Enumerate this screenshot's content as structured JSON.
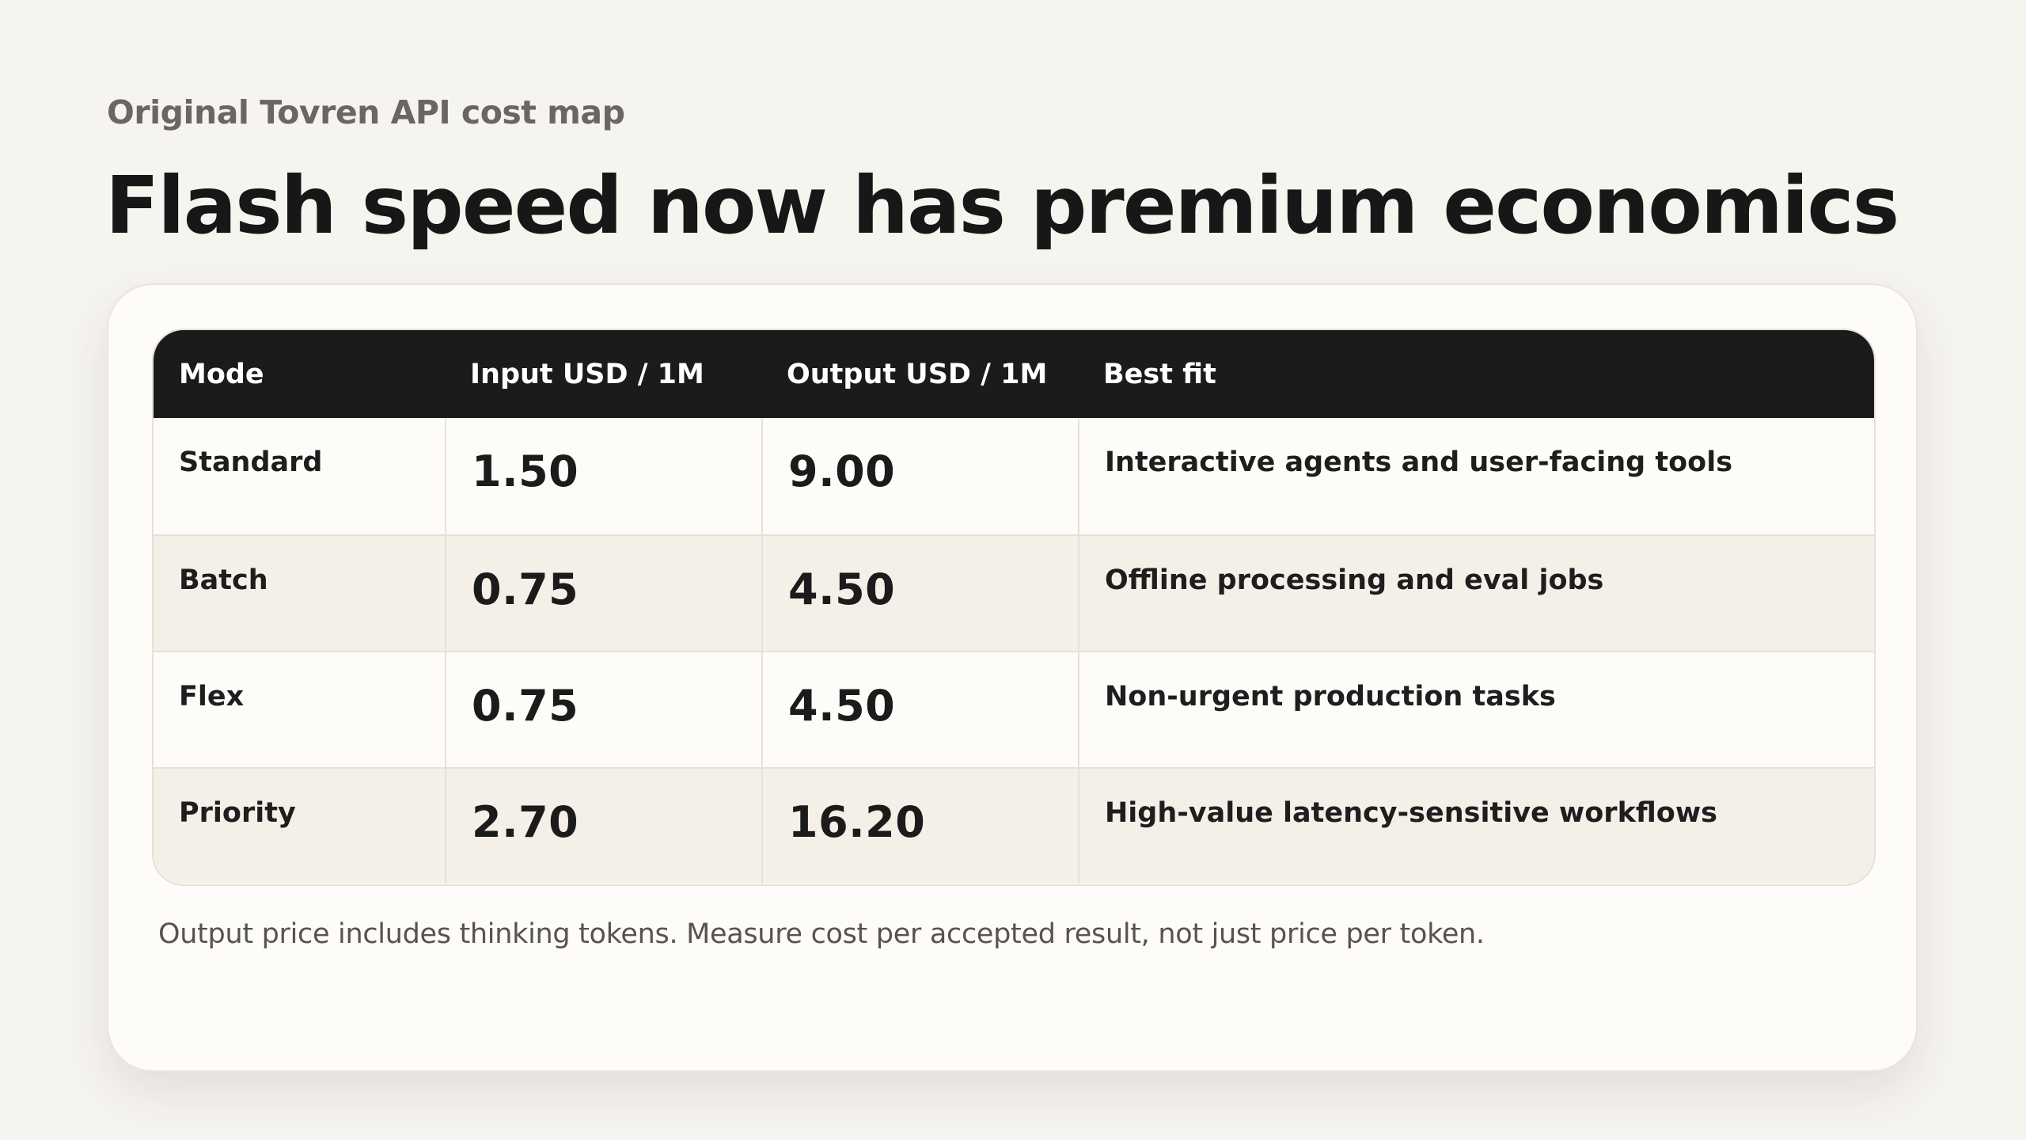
{
  "eyebrow": "Original Tovren API cost map",
  "headline": "Flash speed now has premium economics",
  "table": {
    "headers": {
      "mode": "Mode",
      "input": "Input USD / 1M",
      "output": "Output USD / 1M",
      "best_fit": "Best fit"
    },
    "rows": [
      {
        "mode": "Standard",
        "input": "1.50",
        "output": "9.00",
        "best_fit": "Interactive agents and user-facing tools"
      },
      {
        "mode": "Batch",
        "input": "0.75",
        "output": "4.50",
        "best_fit": "Offline processing and eval jobs"
      },
      {
        "mode": "Flex",
        "input": "0.75",
        "output": "4.50",
        "best_fit": "Non-urgent production tasks"
      },
      {
        "mode": "Priority",
        "input": "2.70",
        "output": "16.20",
        "best_fit": "High-value latency-sensitive workflows"
      }
    ]
  },
  "footnote": "Output price includes thinking tokens. Measure cost per accepted result, not just price per token.",
  "colors": {
    "background": "#f6f4ef",
    "card": "#fdfcf8",
    "header_bg": "#1b1b1b",
    "alt_row": "#f4f0e8",
    "muted_text": "#6a6661"
  }
}
